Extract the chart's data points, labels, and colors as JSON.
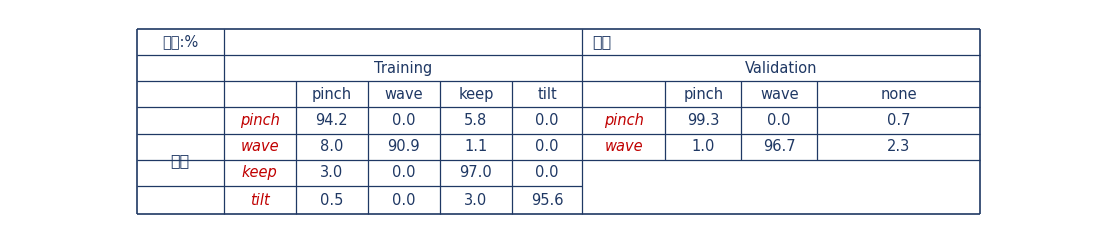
{
  "title_row": "예측",
  "unit_label": "단위:%",
  "actual_label": "실제",
  "training_label": "Training",
  "validation_label": "Validation",
  "train_cols": [
    "pinch",
    "wave",
    "keep",
    "tilt"
  ],
  "val_cols": [
    "pinch",
    "wave",
    "none"
  ],
  "train_rows": [
    "pinch",
    "wave",
    "keep",
    "tilt"
  ],
  "val_rows": [
    "pinch",
    "wave"
  ],
  "train_data": [
    [
      "94.2",
      "0.0",
      "5.8",
      "0.0"
    ],
    [
      "8.0",
      "90.9",
      "1.1",
      "0.0"
    ],
    [
      "3.0",
      "0.0",
      "97.0",
      "0.0"
    ],
    [
      "0.5",
      "0.0",
      "3.0",
      "95.6"
    ]
  ],
  "val_data": [
    [
      "99.3",
      "0.0",
      "0.7"
    ],
    [
      "1.0",
      "96.7",
      "2.3"
    ]
  ],
  "header_color": "#1f3864",
  "row_label_color": "#c00000",
  "col_label_color": "#1f3864",
  "data_color": "#1f3864",
  "border_color": "#1f3864",
  "bg_color": "#ffffff",
  "fontsize": 10.5,
  "figsize": [
    10.94,
    2.41
  ]
}
